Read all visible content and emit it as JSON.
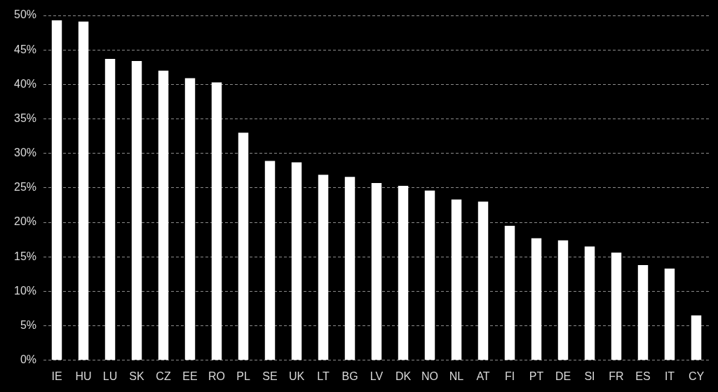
{
  "chart_data": {
    "type": "bar",
    "categories": [
      "IE",
      "HU",
      "LU",
      "SK",
      "CZ",
      "EE",
      "RO",
      "PL",
      "SE",
      "UK",
      "LT",
      "BG",
      "LV",
      "DK",
      "NO",
      "NL",
      "AT",
      "FI",
      "PT",
      "DE",
      "SI",
      "FR",
      "ES",
      "IT",
      "CY"
    ],
    "values": [
      49.3,
      49.1,
      43.7,
      43.4,
      42.0,
      40.9,
      40.3,
      33.0,
      28.9,
      28.7,
      26.9,
      26.6,
      25.7,
      25.3,
      24.6,
      23.3,
      23.0,
      19.5,
      17.7,
      17.4,
      16.5,
      15.6,
      13.8,
      13.3,
      6.5
    ],
    "color": "#ffffff",
    "ylim": [
      0,
      50
    ],
    "yticks": [
      {
        "value": 0,
        "label": "0%"
      },
      {
        "value": 5,
        "label": "5%"
      },
      {
        "value": 10,
        "label": "10%"
      },
      {
        "value": 15,
        "label": "15%"
      },
      {
        "value": 20,
        "label": "20%"
      },
      {
        "value": 25,
        "label": "25%"
      },
      {
        "value": 30,
        "label": "30%"
      },
      {
        "value": 35,
        "label": "35%"
      },
      {
        "value": 40,
        "label": "40%"
      },
      {
        "value": 45,
        "label": "45%"
      },
      {
        "value": 50,
        "label": "50%"
      }
    ],
    "grid": true
  }
}
